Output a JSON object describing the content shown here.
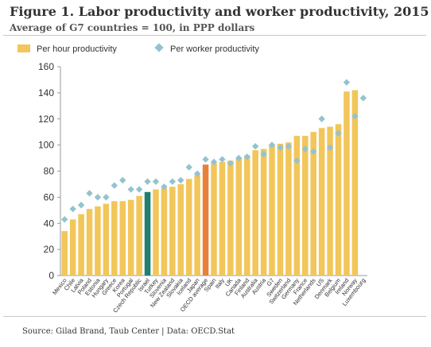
{
  "figure": {
    "title": "Figure 1.  Labor productivity and worker productivity, 2015",
    "subtitle": "Average of G7 countries = 100, in PPP dollars",
    "source": "Source: Gilad Brand, Taub Center | Data: OECD.Stat"
  },
  "colors": {
    "bar": "#F2C65A",
    "highlight_israel": "#1F7F70",
    "highlight_oecd": "#E8803A",
    "marker": "#93C3CF",
    "axis_text": "#333333",
    "axis_line": "#999999"
  },
  "chart_data": {
    "type": "bar",
    "ylim": [
      0,
      160
    ],
    "yticks": [
      0,
      20,
      40,
      60,
      80,
      100,
      120,
      140,
      160
    ],
    "grid": false,
    "legend_position": "top-left",
    "categories": [
      "Mexico",
      "Chile",
      "Latvia",
      "Poland",
      "Estonia",
      "Hungary",
      "Greece",
      "Korea",
      "Portugal",
      "Czech Republic",
      "Israel",
      "Turkey",
      "Slovenia",
      "New Zealand",
      "Slovakia",
      "Iceland",
      "Japan",
      "OECD average",
      "Spain",
      "Italy",
      "UK",
      "Canada",
      "Finland",
      "Australia",
      "Austria",
      "G7",
      "Sweden",
      "Switzerland",
      "Germany",
      "France",
      "Netherlands",
      "US",
      "Denmark",
      "Belgium",
      "Ireland",
      "Norway",
      "Luxembourg"
    ],
    "highlight": {
      "Israel": "israel",
      "OECD average": "oecd"
    },
    "series": [
      {
        "name": "Per hour productivity",
        "kind": "bar",
        "values": [
          34,
          43,
          47,
          51,
          53,
          55,
          57,
          57,
          58,
          61,
          64,
          66,
          67,
          68,
          70,
          74,
          77,
          85,
          86,
          87,
          88,
          90,
          92,
          96,
          97,
          100,
          101,
          102,
          107,
          107,
          110,
          113,
          114,
          116,
          141,
          142,
          null
        ]
      },
      {
        "name": "Per worker productivity",
        "kind": "marker",
        "values": [
          43,
          51,
          54,
          63,
          60,
          60,
          69,
          73,
          66,
          66,
          72,
          72,
          68,
          72,
          73,
          83,
          78,
          89,
          87,
          89,
          86,
          90,
          91,
          99,
          93,
          100,
          98,
          99,
          88,
          97,
          95,
          120,
          98,
          109,
          148,
          122,
          136
        ]
      }
    ]
  }
}
